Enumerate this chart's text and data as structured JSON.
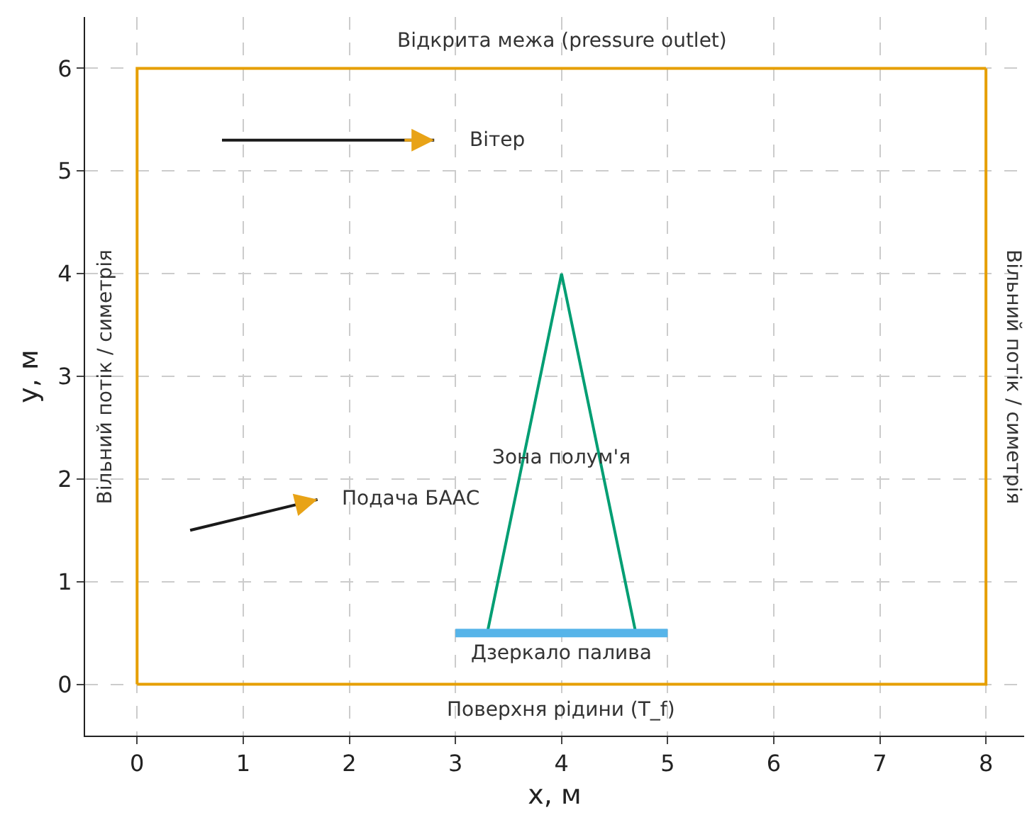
{
  "chart_data": {
    "type": "line",
    "xlabel": "x, м",
    "ylabel": "y, м",
    "xlim": [
      -0.49,
      8.36
    ],
    "ylim": [
      -0.5,
      6.5
    ],
    "xticks": [
      0,
      1,
      2,
      3,
      4,
      5,
      6,
      7,
      8
    ],
    "yticks": [
      0,
      1,
      2,
      3,
      4,
      5,
      6
    ],
    "grid": true,
    "line_style": "solid",
    "series": [
      {
        "color": "#e69f00",
        "x": [
          0,
          0,
          8
        ],
        "values": [
          0,
          6,
          6
        ]
      },
      {
        "color": "#e69f00",
        "x": [
          0,
          8,
          8
        ],
        "values": [
          0,
          0,
          6
        ]
      },
      {
        "color": "#009e73",
        "x": [
          3.3,
          4,
          4.7
        ],
        "values": [
          0.5,
          4,
          0.5
        ]
      },
      {
        "color": "#56b4e9",
        "x": [
          3,
          5
        ],
        "values": [
          0.5,
          0.5
        ]
      },
      {
        "color": "#1a1a1a",
        "x": [
          0.8,
          2.8
        ],
        "values": [
          5.3,
          5.3
        ]
      },
      {
        "color": "#1a1a1a",
        "x": [
          0.5,
          1.7
        ],
        "values": [
          1.5,
          1.8
        ]
      }
    ],
    "annotations": [
      "Відкрита межа (pressure outlet)",
      "Вітер",
      "Подача БААС",
      "Зона полум'я",
      "Дзеркало палива",
      "Поверхня рідини (T_f)",
      "Вільний потік / симетрія",
      "Вільний потік / симетрія"
    ]
  }
}
